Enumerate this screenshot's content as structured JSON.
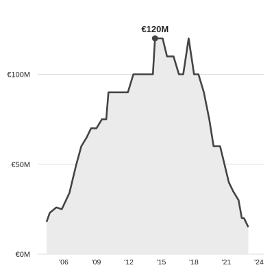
{
  "chart_data": {
    "type": "area",
    "title": "",
    "xlabel": "",
    "ylabel": "",
    "y_unit_prefix": "€",
    "y_unit_suffix": "M",
    "xlim": [
      2004.8,
      2024.0
    ],
    "ylim": [
      0,
      120
    ],
    "grid": "horizontal",
    "colors": {
      "line": "#444444",
      "fill": "#ebebeb",
      "grid": "#dddddd",
      "marker": "#444444"
    },
    "y_ticks": [
      {
        "value": 0,
        "label": "€0M"
      },
      {
        "value": 50,
        "label": "€50M"
      },
      {
        "value": 100,
        "label": "€100M"
      }
    ],
    "x_ticks": [
      {
        "value": 2006,
        "label": "'06"
      },
      {
        "value": 2009,
        "label": "'09"
      },
      {
        "value": 2012,
        "label": "'12"
      },
      {
        "value": 2015,
        "label": "'15"
      },
      {
        "value": 2018,
        "label": "'18"
      },
      {
        "value": 2021,
        "label": "'21"
      },
      {
        "value": 2024,
        "label": "'24"
      }
    ],
    "annotation": {
      "x": 2014.8,
      "y": 120,
      "label": "€120M"
    },
    "x": [
      2004.8,
      2005.1,
      2005.7,
      2006.2,
      2006.9,
      2007.5,
      2008.0,
      2008.5,
      2008.9,
      2009.4,
      2009.9,
      2010.2,
      2010.3,
      2010.5,
      2010.8,
      2011.2,
      2011.8,
      2012.3,
      2012.8,
      2013.2,
      2013.8,
      2014.6,
      2014.8,
      2015.2,
      2015.5,
      2015.9,
      2016.5,
      2017.0,
      2017.4,
      2017.9,
      2018.4,
      2018.8,
      2019.3,
      2019.8,
      2020.2,
      2020.8,
      2021.2,
      2021.6,
      2022.0,
      2022.5,
      2022.8,
      2023.0,
      2023.4
    ],
    "values": [
      18,
      23,
      26,
      25,
      34,
      49,
      60,
      65,
      70,
      70,
      75,
      75,
      75,
      90,
      90,
      90,
      90,
      90,
      100,
      100,
      100,
      100,
      120,
      120,
      120,
      110,
      110,
      100,
      100,
      120,
      100,
      100,
      90,
      75,
      60,
      60,
      50,
      40,
      35,
      30,
      20,
      20,
      15
    ]
  }
}
